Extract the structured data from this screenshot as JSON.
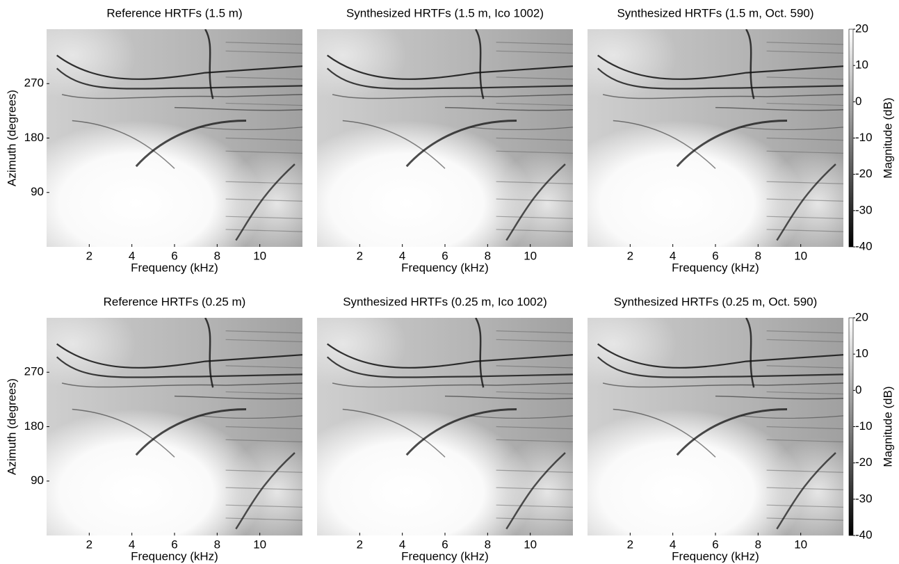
{
  "chart_data": [
    {
      "type": "heatmap",
      "title": "Reference HRTFs (1.5 m)",
      "x_label": "Frequency (kHz)",
      "y_label": "Azimuth (degrees)",
      "xlim": [
        0,
        12
      ],
      "xticks": [
        2,
        4,
        6,
        8,
        10
      ],
      "ylim": [
        0,
        360
      ],
      "yticks": [
        90,
        180,
        270
      ],
      "colormap": "gray"
    },
    {
      "type": "heatmap",
      "title": "Synthesized HRTFs (1.5 m, Ico 1002)",
      "x_label": "Frequency (kHz)",
      "xlim": [
        0,
        12
      ],
      "xticks": [
        2,
        4,
        6,
        8,
        10
      ],
      "ylim": [
        0,
        360
      ],
      "colormap": "gray"
    },
    {
      "type": "heatmap",
      "title": "Synthesized HRTFs (1.5 m, Oct. 590)",
      "x_label": "Frequency (kHz)",
      "xlim": [
        0,
        12
      ],
      "xticks": [
        2,
        4,
        6,
        8,
        10
      ],
      "ylim": [
        0,
        360
      ],
      "colormap": "gray",
      "colorbar": {
        "label": "Magnitude (dB)",
        "lim": [
          -40,
          20
        ],
        "ticks": [
          -40,
          -30,
          -20,
          -10,
          0,
          10,
          20
        ]
      }
    },
    {
      "type": "heatmap",
      "title": "Reference HRTFs (0.25 m)",
      "x_label": "Frequency (kHz)",
      "y_label": "Azimuth (degrees)",
      "xlim": [
        0,
        12
      ],
      "xticks": [
        2,
        4,
        6,
        8,
        10
      ],
      "ylim": [
        0,
        360
      ],
      "yticks": [
        90,
        180,
        270
      ],
      "colormap": "gray"
    },
    {
      "type": "heatmap",
      "title": "Synthesized HRTFs (0.25 m, Ico 1002)",
      "x_label": "Frequency (kHz)",
      "xlim": [
        0,
        12
      ],
      "xticks": [
        2,
        4,
        6,
        8,
        10
      ],
      "ylim": [
        0,
        360
      ],
      "colormap": "gray"
    },
    {
      "type": "heatmap",
      "title": "Synthesized HRTFs (0.25 m, Oct. 590)",
      "x_label": "Frequency (kHz)",
      "xlim": [
        0,
        12
      ],
      "xticks": [
        2,
        4,
        6,
        8,
        10
      ],
      "ylim": [
        0,
        360
      ],
      "colormap": "gray",
      "colorbar": {
        "label": "Magnitude (dB)",
        "lim": [
          -40,
          20
        ],
        "ticks": [
          -40,
          -30,
          -20,
          -10,
          0,
          10,
          20
        ]
      }
    }
  ]
}
